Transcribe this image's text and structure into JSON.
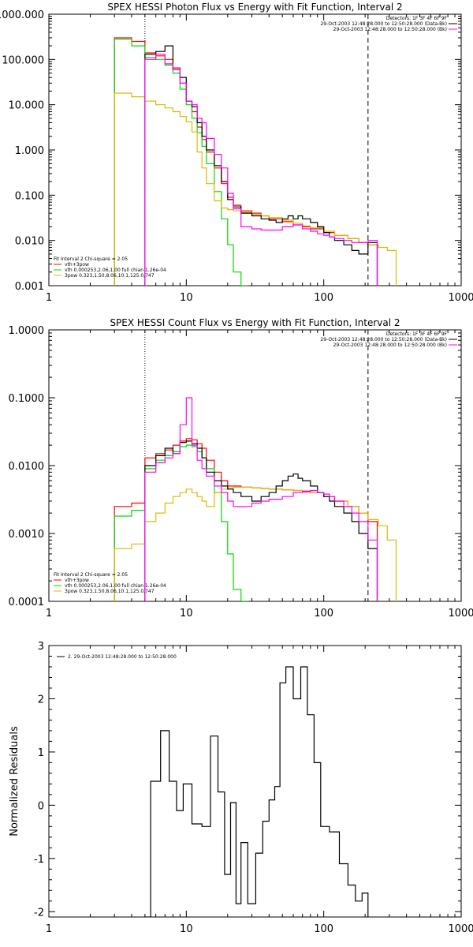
{
  "chart_data": [
    {
      "type": "line",
      "title": "SPEX HESSI Photon Flux vs Energy with Fit Function, Interval 2",
      "xlabel": "",
      "ylabel": "",
      "xscale": "log",
      "yscale": "log",
      "xlim": [
        1,
        1000
      ],
      "ylim": [
        0.001,
        1000
      ],
      "x_ticks": [
        "1",
        "10",
        "100",
        "1000"
      ],
      "y_ticks": [
        "1000.000",
        "100.000",
        "10.000",
        "1.000",
        "0.100",
        "0.010",
        "0.001"
      ],
      "vlines": [
        {
          "x": 5,
          "style": "dotted"
        },
        {
          "x": 210,
          "style": "dashed"
        }
      ],
      "header_lines": [
        "Detectors: 1F 3F 4F 6F 9F",
        "29-Oct-2003 12:48:28.000 to 12:50:28.000 (Data-Bk)",
        "29-Oct-2003 12:48:28.000 to 12:50:28.000 (Bk)"
      ],
      "legend_header": "Fit Interval 2   Chi-square = 2.05",
      "legend_placement": "bottom-left",
      "series": [
        {
          "name": "vth+3pow",
          "color": "#ff0000",
          "x": [
            3,
            4,
            5,
            6,
            7,
            8,
            9,
            10,
            11,
            12,
            13,
            14,
            16,
            18,
            20,
            22,
            25,
            30,
            35,
            40,
            50,
            60,
            70,
            80,
            100,
            120,
            150,
            180,
            210
          ],
          "y": [
            300,
            250,
            140,
            120,
            100,
            65,
            30,
            12,
            7,
            3.2,
            1.7,
            0.9,
            0.4,
            0.18,
            0.09,
            0.06,
            0.045,
            0.04,
            0.035,
            0.03,
            0.026,
            0.022,
            0.02,
            0.018,
            0.015,
            0.013,
            0.011,
            0.009,
            0.008
          ]
        },
        {
          "name": "vth 0.000253,2.06,1.00   full chian 1.26e-04",
          "color": "#00dd00",
          "x": [
            3,
            4,
            5,
            6,
            7,
            8,
            9,
            10,
            11,
            12,
            13,
            14,
            16,
            18,
            20,
            22,
            25
          ],
          "y": [
            280,
            200,
            110,
            100,
            75,
            50,
            22,
            10,
            5,
            2.4,
            1.2,
            0.5,
            0.12,
            0.03,
            0.008,
            0.002,
            0.0007
          ]
        },
        {
          "name": "3pow 0.323,1.50,8.06,10.1,125.0,747",
          "color": "#ddbb00",
          "x": [
            3,
            4,
            5,
            6,
            7,
            8,
            9,
            10,
            11,
            12,
            13,
            14,
            16,
            18,
            20,
            22,
            25,
            30,
            35,
            40,
            50,
            60,
            70,
            80,
            100,
            120,
            150,
            180,
            210,
            250,
            290
          ],
          "y": [
            18,
            15,
            12,
            10,
            8.5,
            7,
            5.5,
            4.2,
            2.5,
            0.9,
            0.4,
            0.18,
            0.075,
            0.052,
            0.048,
            0.045,
            0.042,
            0.038,
            0.035,
            0.032,
            0.028,
            0.024,
            0.021,
            0.019,
            0.016,
            0.013,
            0.011,
            0.009,
            0.008,
            0.007,
            0.006
          ]
        },
        {
          "name": "data - bk",
          "color": "#000000",
          "x": [
            5,
            6,
            7,
            8,
            9,
            10,
            11,
            12,
            13,
            14,
            16,
            18,
            20,
            22,
            25,
            30,
            35,
            40,
            45,
            50,
            55,
            60,
            65,
            70,
            80,
            90,
            100,
            110,
            120,
            140,
            160,
            180,
            210
          ],
          "y": [
            130,
            150,
            200,
            60,
            40,
            12,
            9,
            4,
            2,
            1,
            0.45,
            0.2,
            0.08,
            0.055,
            0.04,
            0.035,
            0.03,
            0.028,
            0.025,
            0.03,
            0.035,
            0.03,
            0.035,
            0.03,
            0.025,
            0.02,
            0.015,
            0.012,
            0.01,
            0.008,
            0.006,
            0.005,
            0.009
          ]
        },
        {
          "name": "bk",
          "color": "#ff00ff",
          "x": [
            5,
            6,
            7,
            8,
            9,
            10,
            11,
            12,
            13,
            14,
            16,
            18,
            20,
            22,
            25,
            30,
            35,
            40,
            50,
            60,
            70,
            80,
            90,
            100,
            110,
            120,
            140,
            160,
            180,
            210
          ],
          "y": [
            100,
            130,
            80,
            60,
            30,
            12,
            10,
            5,
            4,
            1.8,
            0.8,
            0.4,
            0.11,
            0.05,
            0.02,
            0.018,
            0.017,
            0.017,
            0.02,
            0.022,
            0.018,
            0.016,
            0.014,
            0.013,
            0.012,
            0.011,
            0.01,
            0.009,
            0.009,
            0.01
          ]
        }
      ]
    },
    {
      "type": "line",
      "title": "SPEX HESSI Count Flux vs Energy with Fit Function, Interval 2",
      "xlabel": "",
      "ylabel": "",
      "xscale": "log",
      "yscale": "log",
      "xlim": [
        1,
        1000
      ],
      "ylim": [
        0.0001,
        1
      ],
      "x_ticks": [
        "1",
        "10",
        "100",
        "1000"
      ],
      "y_ticks": [
        "1.0000",
        "0.1000",
        "0.0100",
        "0.0010",
        "0.0001"
      ],
      "vlines": [
        {
          "x": 5,
          "style": "dotted"
        },
        {
          "x": 210,
          "style": "dashed"
        }
      ],
      "header_lines": [
        "Detectors: 1F 3F 4F 6F 9F",
        "29-Oct-2003 12:48:28.000 to 12:50:28.000 (Data-Bk)",
        "29-Oct-2003 12:48:28.000 to 12:50:28.000 (Bk)"
      ],
      "legend_header": "Fit Interval 2   Chi-square = 2.05",
      "legend_placement": "bottom-left",
      "series": [
        {
          "name": "vth+3pow",
          "color": "#ff0000",
          "x": [
            3,
            4,
            5,
            6,
            7,
            8,
            9,
            10,
            11,
            12,
            13,
            14,
            16,
            18,
            20,
            22,
            25,
            30,
            35,
            40,
            50,
            60,
            70,
            80,
            100,
            120,
            150,
            180,
            210
          ],
          "y": [
            0.0025,
            0.0028,
            0.013,
            0.015,
            0.017,
            0.02,
            0.023,
            0.025,
            0.024,
            0.021,
            0.018,
            0.012,
            0.008,
            0.006,
            0.005,
            0.005,
            0.0048,
            0.0047,
            0.0046,
            0.0045,
            0.0044,
            0.0043,
            0.0041,
            0.004,
            0.0035,
            0.003,
            0.0025,
            0.002,
            0.0015
          ]
        },
        {
          "name": "vth 0.000253,2.06,1.00   full chian 1.26e-04",
          "color": "#00dd00",
          "x": [
            3,
            4,
            5,
            6,
            7,
            8,
            9,
            10,
            11,
            12,
            13,
            14,
            16,
            18,
            20,
            22,
            25
          ],
          "y": [
            0.0018,
            0.0022,
            0.009,
            0.012,
            0.014,
            0.016,
            0.019,
            0.02,
            0.019,
            0.016,
            0.013,
            0.009,
            0.004,
            0.0015,
            0.0005,
            0.00015,
            4e-05
          ]
        },
        {
          "name": "3pow 0.323,1.50,8.06,10.1,125.0,747",
          "color": "#ddbb00",
          "x": [
            3,
            4,
            5,
            6,
            7,
            8,
            9,
            10,
            11,
            12,
            13,
            14,
            16,
            18,
            20,
            22,
            25,
            30,
            35,
            40,
            50,
            60,
            70,
            80,
            100,
            120,
            150,
            180,
            210,
            250,
            290
          ],
          "y": [
            0.0006,
            0.0007,
            0.0015,
            0.002,
            0.0028,
            0.0035,
            0.004,
            0.0045,
            0.004,
            0.0035,
            0.003,
            0.0025,
            0.004,
            0.0045,
            0.0047,
            0.0048,
            0.0048,
            0.0047,
            0.0046,
            0.0045,
            0.0044,
            0.0043,
            0.0042,
            0.004,
            0.0035,
            0.003,
            0.0025,
            0.002,
            0.0016,
            0.0013,
            0.0008
          ]
        },
        {
          "name": "data - bk",
          "color": "#000000",
          "x": [
            5,
            6,
            7,
            8,
            9,
            10,
            11,
            12,
            13,
            14,
            16,
            18,
            20,
            22,
            25,
            30,
            35,
            40,
            45,
            50,
            55,
            60,
            65,
            70,
            80,
            90,
            100,
            110,
            120,
            140,
            160,
            180,
            210
          ],
          "y": [
            0.01,
            0.014,
            0.018,
            0.015,
            0.022,
            0.023,
            0.021,
            0.018,
            0.013,
            0.008,
            0.006,
            0.005,
            0.0045,
            0.004,
            0.0035,
            0.003,
            0.0035,
            0.004,
            0.005,
            0.006,
            0.007,
            0.0075,
            0.0065,
            0.006,
            0.005,
            0.004,
            0.0035,
            0.003,
            0.0025,
            0.002,
            0.0015,
            0.001,
            0.0006
          ]
        },
        {
          "name": "bk",
          "color": "#ff00ff",
          "x": [
            5,
            6,
            7,
            8,
            9,
            10,
            11,
            12,
            13,
            14,
            16,
            18,
            20,
            22,
            25,
            30,
            35,
            40,
            50,
            60,
            70,
            80,
            90,
            100,
            110,
            120,
            140,
            160,
            180,
            210
          ],
          "y": [
            0.008,
            0.011,
            0.013,
            0.015,
            0.04,
            0.1,
            0.02,
            0.012,
            0.009,
            0.007,
            0.005,
            0.004,
            0.003,
            0.0025,
            0.0025,
            0.0028,
            0.003,
            0.0032,
            0.0035,
            0.004,
            0.0042,
            0.0043,
            0.004,
            0.0038,
            0.0035,
            0.003,
            0.0025,
            0.002,
            0.0015,
            0.0008
          ]
        }
      ]
    },
    {
      "type": "line",
      "title": "",
      "xlabel": "",
      "ylabel": "Normalized Residuals",
      "xscale": "log",
      "yscale": "linear",
      "xlim": [
        1,
        1000
      ],
      "ylim": [
        -2.1,
        3
      ],
      "x_ticks": [
        "1",
        "10",
        "100",
        "1000"
      ],
      "y_ticks": [
        "3",
        "2",
        "1",
        "0",
        "-1",
        "-2"
      ],
      "legend_header": "",
      "legend_placement": "top-left",
      "series": [
        {
          "name": "2. 29-Oct-2003 12:48:28.000 to 12:50:28.000",
          "color": "#000000",
          "x": [
            5,
            5.5,
            6,
            6.5,
            7,
            7.5,
            8,
            8.5,
            9,
            9.5,
            10,
            11,
            12,
            13,
            14,
            15,
            16,
            17,
            18,
            19,
            20,
            21,
            22,
            23,
            24,
            25,
            26,
            28,
            30,
            32,
            34,
            36,
            38,
            40,
            42,
            44,
            46,
            48,
            50,
            53,
            56,
            60,
            64,
            68,
            72,
            76,
            80,
            85,
            90,
            95,
            100,
            110,
            120,
            130,
            140,
            150,
            160,
            170,
            180,
            190,
            200,
            210
          ],
          "y": [
            -2.1,
            0.45,
            0.45,
            1.4,
            1.4,
            0.45,
            0.45,
            -0.1,
            -0.1,
            0.4,
            0.4,
            -0.35,
            -0.35,
            -0.4,
            -0.4,
            1.3,
            1.3,
            0.25,
            0.25,
            -1.3,
            -1.3,
            0.05,
            0.05,
            -1.85,
            -1.85,
            -0.7,
            -0.7,
            -1.85,
            -1.85,
            -0.9,
            -0.9,
            -0.3,
            -0.3,
            0.1,
            0.1,
            0.35,
            0.35,
            2.3,
            2.3,
            2.6,
            2.6,
            2.0,
            2.0,
            2.6,
            2.6,
            1.7,
            1.7,
            0.8,
            0.8,
            -0.4,
            -0.4,
            -0.5,
            -0.5,
            -1.1,
            -1.1,
            -1.5,
            -1.5,
            -1.8,
            -1.8,
            -1.65,
            -1.65,
            -2.1
          ]
        }
      ]
    }
  ]
}
